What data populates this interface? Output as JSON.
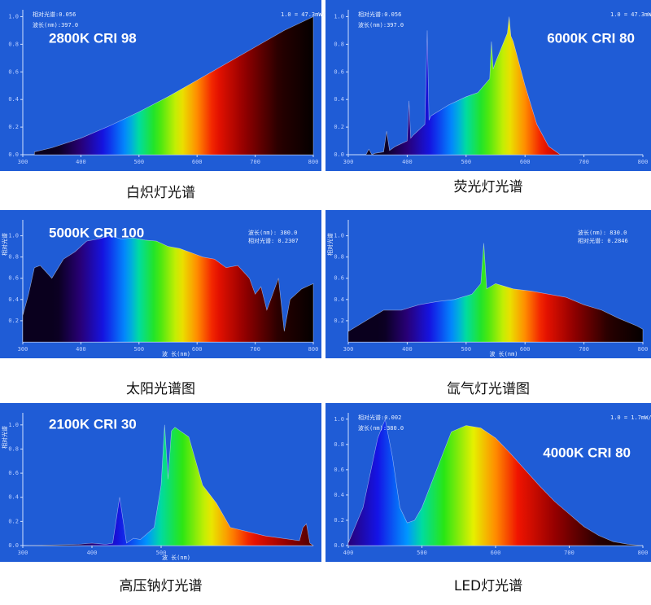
{
  "chart_data": [
    {
      "type": "area",
      "label": "2800K CRI 98",
      "caption": "白炽灯光谱",
      "color": "#1f5cd6",
      "annotations": [
        "相对光谱:0.056",
        "波长(nm):397.0",
        "1.0 = 47.3mW/nm"
      ],
      "x": [
        320,
        350,
        400,
        450,
        500,
        550,
        600,
        650,
        700,
        750,
        800
      ],
      "values": [
        0.02,
        0.05,
        0.12,
        0.21,
        0.31,
        0.42,
        0.54,
        0.66,
        0.78,
        0.9,
        1.0
      ],
      "xlim": [
        300,
        800
      ],
      "ylim": [
        0,
        1.05
      ],
      "xticks": [
        300,
        400,
        500,
        600,
        700,
        800
      ],
      "yticks": [
        {
          "value": 0,
          "label": "0.0"
        },
        0.2,
        0.4,
        0.6,
        0.8,
        {
          "value": 1,
          "label": "1.0"
        }
      ]
    },
    {
      "type": "area",
      "label": "6000K CRI 80",
      "caption": "荧光灯光谱",
      "color": "#1f5cd6",
      "annotations": [
        "相对光谱:0.056",
        "波长(nm):397.0",
        "1.0 = 47.3mW/nm"
      ],
      "x": [
        330,
        335,
        340,
        345,
        360,
        365,
        370,
        380,
        400,
        403,
        406,
        410,
        430,
        434,
        437,
        440,
        470,
        500,
        520,
        540,
        543,
        546,
        550,
        570,
        573,
        576,
        580,
        600,
        620,
        640,
        660
      ],
      "values": [
        0,
        0.04,
        0,
        0.01,
        0.02,
        0.17,
        0.03,
        0.06,
        0.1,
        0.39,
        0.12,
        0.14,
        0.22,
        0.9,
        0.25,
        0.28,
        0.36,
        0.42,
        0.45,
        0.55,
        0.82,
        0.62,
        0.67,
        0.88,
        1.0,
        0.86,
        0.82,
        0.5,
        0.22,
        0.06,
        0
      ],
      "xlim": [
        300,
        800
      ],
      "ylim": [
        0,
        1.05
      ],
      "xticks": [
        300,
        400,
        500,
        600,
        700,
        800
      ],
      "yticks": [
        {
          "value": 0,
          "label": "0.0"
        },
        0.2,
        0.4,
        0.6,
        0.8,
        {
          "value": 1,
          "label": "1.0"
        }
      ]
    },
    {
      "type": "area",
      "label": "5000K CRI 100",
      "caption": "太阳光谱图",
      "color": "#1f5cd6",
      "ylabel": "相对光谱",
      "xlabel": "波 长(nm)",
      "annotations": [
        "波长(nm): 380.0",
        "相对光谱: 0.2307"
      ],
      "x": [
        300,
        310,
        320,
        330,
        350,
        370,
        390,
        410,
        430,
        450,
        470,
        490,
        510,
        530,
        550,
        570,
        590,
        610,
        630,
        650,
        670,
        690,
        700,
        710,
        720,
        740,
        750,
        760,
        770,
        780,
        800
      ],
      "values": [
        0.25,
        0.45,
        0.7,
        0.72,
        0.6,
        0.78,
        0.85,
        0.95,
        0.97,
        1.0,
        0.97,
        0.98,
        0.96,
        0.95,
        0.9,
        0.88,
        0.84,
        0.8,
        0.78,
        0.7,
        0.72,
        0.6,
        0.45,
        0.52,
        0.3,
        0.6,
        0.1,
        0.4,
        0.45,
        0.5,
        0.55
      ],
      "xlim": [
        300,
        800
      ],
      "ylim": [
        0,
        1.15
      ],
      "xticks": [
        300,
        400,
        500,
        600,
        700,
        800
      ],
      "yticks": [
        0.2,
        0.4,
        0.6,
        0.8,
        {
          "value": 1,
          "label": "1.0"
        }
      ]
    },
    {
      "type": "area",
      "caption": "氙气灯光谱图",
      "color": "#1f5cd6",
      "ylabel": "相对光谱",
      "xlabel": "波 长(nm)",
      "annotations": [
        "波长(nm): 830.0",
        "相对光谱: 0.2846"
      ],
      "x": [
        300,
        330,
        360,
        390,
        420,
        450,
        480,
        510,
        525,
        530,
        535,
        550,
        580,
        610,
        640,
        670,
        700,
        730,
        760,
        790,
        800
      ],
      "values": [
        0.1,
        0.2,
        0.3,
        0.3,
        0.35,
        0.38,
        0.4,
        0.45,
        0.55,
        0.93,
        0.5,
        0.55,
        0.5,
        0.48,
        0.45,
        0.42,
        0.35,
        0.3,
        0.22,
        0.15,
        0.12
      ],
      "xlim": [
        300,
        800
      ],
      "ylim": [
        0,
        1.15
      ],
      "xticks": [
        300,
        400,
        500,
        600,
        700,
        800
      ],
      "yticks": [
        0.2,
        0.4,
        0.6,
        0.8,
        {
          "value": 1,
          "label": "1.0"
        }
      ]
    },
    {
      "type": "area",
      "label": "2100K CRI 30",
      "caption": "高压钠灯光谱",
      "color": "#1f5cd6",
      "ylabel": "相对光谱",
      "xlabel": "波 长(nm)",
      "annotations": [],
      "x": [
        300,
        380,
        400,
        420,
        430,
        440,
        450,
        460,
        470,
        480,
        490,
        500,
        505,
        510,
        515,
        520,
        540,
        560,
        580,
        600,
        650,
        700,
        705,
        710,
        715,
        720
      ],
      "values": [
        0,
        0.01,
        0.02,
        0.01,
        0.02,
        0.4,
        0.02,
        0.06,
        0.05,
        0.1,
        0.15,
        0.5,
        1.0,
        0.55,
        0.95,
        0.98,
        0.9,
        0.5,
        0.35,
        0.15,
        0.08,
        0.04,
        0.15,
        0.18,
        0.02,
        0
      ],
      "xlim": [
        300,
        720
      ],
      "ylim": [
        0,
        1.1
      ],
      "xticks": [
        300,
        400,
        500
      ],
      "yticks": [
        {
          "value": 0,
          "label": "0.0"
        },
        0.2,
        0.4,
        0.6,
        0.8,
        {
          "value": 1,
          "label": "1.0"
        }
      ]
    },
    {
      "type": "area",
      "label": "4000K CRI 80",
      "caption": "LED灯光谱",
      "color": "#1f5cd6",
      "annotations": [
        "相对光谱:0.002",
        "波长(nm):380.0",
        "1.0 = 1.7mW/nm"
      ],
      "x": [
        400,
        420,
        440,
        450,
        460,
        470,
        480,
        490,
        500,
        520,
        540,
        560,
        580,
        600,
        620,
        640,
        660,
        680,
        700,
        720,
        740,
        760,
        780,
        800
      ],
      "values": [
        0.02,
        0.3,
        0.85,
        1.0,
        0.7,
        0.3,
        0.18,
        0.2,
        0.3,
        0.6,
        0.9,
        0.95,
        0.93,
        0.85,
        0.73,
        0.6,
        0.47,
        0.35,
        0.25,
        0.15,
        0.08,
        0.03,
        0.01,
        0
      ],
      "xlim": [
        400,
        800
      ],
      "ylim": [
        0,
        1.05
      ],
      "xticks": [
        400,
        500,
        600,
        700,
        800
      ],
      "yticks": [
        {
          "value": 0,
          "label": "0.0"
        },
        0.2,
        0.4,
        0.6,
        0.8,
        {
          "value": 1,
          "label": "1.0"
        }
      ]
    }
  ]
}
